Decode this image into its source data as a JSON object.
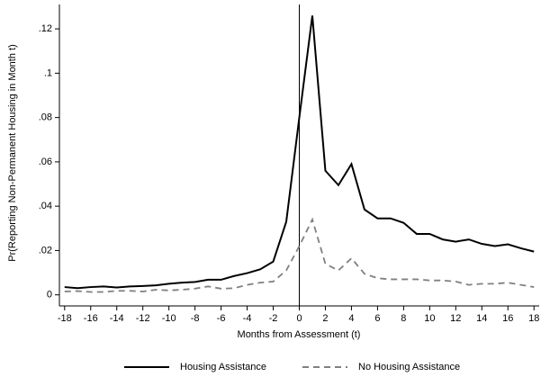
{
  "chart_data": {
    "type": "line",
    "x_label": "Months from Assessment (t)",
    "y_label": "Pr(Reporting Non-Permanent Housing in Month t)",
    "x": [
      -18,
      -17,
      -16,
      -15,
      -14,
      -13,
      -12,
      -11,
      -10,
      -9,
      -8,
      -7,
      -6,
      -5,
      -4,
      -3,
      -2,
      -1,
      0,
      1,
      2,
      3,
      4,
      5,
      6,
      7,
      8,
      9,
      10,
      11,
      12,
      13,
      14,
      15,
      16,
      17,
      18
    ],
    "series": [
      {
        "name": "Housing Assistance",
        "color": "#000000",
        "line_style": "solid",
        "values": [
          0.0035,
          0.003,
          0.0035,
          0.0038,
          0.0033,
          0.0038,
          0.004,
          0.0043,
          0.005,
          0.0055,
          0.0058,
          0.0068,
          0.0068,
          0.0085,
          0.0098,
          0.0115,
          0.015,
          0.033,
          0.08,
          0.126,
          0.056,
          0.0495,
          0.059,
          0.0385,
          0.0345,
          0.0345,
          0.0325,
          0.0275,
          0.0275,
          0.025,
          0.024,
          0.025,
          0.023,
          0.022,
          0.0228,
          0.021,
          0.0195
        ]
      },
      {
        "name": "No Housing Assistance",
        "color": "#808080",
        "line_style": "dashed",
        "values": [
          0.0015,
          0.0017,
          0.0013,
          0.0013,
          0.0018,
          0.0018,
          0.0015,
          0.0023,
          0.002,
          0.0023,
          0.0028,
          0.0038,
          0.0028,
          0.003,
          0.0045,
          0.0055,
          0.006,
          0.011,
          0.022,
          0.034,
          0.014,
          0.011,
          0.0165,
          0.0095,
          0.0075,
          0.007,
          0.007,
          0.007,
          0.0065,
          0.0065,
          0.006,
          0.0045,
          0.005,
          0.005,
          0.0055,
          0.0045,
          0.0035
        ]
      }
    ],
    "xlim": [
      -18.4,
      18.4
    ],
    "xticks": [
      -18,
      -16,
      -14,
      -12,
      -10,
      -8,
      -6,
      -4,
      -2,
      0,
      2,
      4,
      6,
      8,
      10,
      12,
      14,
      16,
      18
    ],
    "ylim": [
      -0.005,
      0.131
    ],
    "yticks": [
      0,
      {
        "value": 0.02,
        "label": ".02"
      },
      {
        "value": 0.04,
        "label": ".04"
      },
      {
        "value": 0.06,
        "label": ".06"
      },
      {
        "value": 0.08,
        "label": ".08"
      },
      {
        "value": 0.1,
        "label": ".1"
      },
      {
        "value": 0.12,
        "label": ".12"
      }
    ],
    "vline": 0,
    "legend": "bottom"
  }
}
